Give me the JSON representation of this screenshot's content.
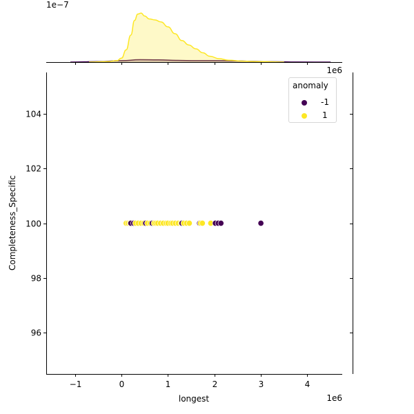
{
  "chart_data": {
    "type": "scatter",
    "subtype": "jointplot",
    "title": "",
    "xlabel": "longest",
    "ylabel": "Completeness_Specific",
    "x_scale_label": "1e6",
    "x_ticks": [
      -1,
      0,
      1,
      2,
      3,
      4
    ],
    "x_tick_labels": [
      "−1",
      "0",
      "1",
      "2",
      "3",
      "4"
    ],
    "xlim": [
      -1.62,
      4.75
    ],
    "y_ticks": [
      96,
      98,
      100,
      102,
      104
    ],
    "y_tick_labels": [
      "96",
      "98",
      "100",
      "102",
      "104"
    ],
    "ylim": [
      94.5,
      105.5
    ],
    "grid": false,
    "legend": {
      "title": "anomaly",
      "position": "upper right",
      "entries": [
        {
          "label": "-1",
          "color": "#440154"
        },
        {
          "label": "1",
          "color": "#fde725"
        }
      ]
    },
    "series": [
      {
        "name": "1",
        "color": "#fde725",
        "x_1e6": [
          0.1,
          0.14,
          0.18,
          0.3,
          0.36,
          0.42,
          0.48,
          0.56,
          0.62,
          0.66,
          0.7,
          0.74,
          0.78,
          0.84,
          0.9,
          0.96,
          1.0,
          1.06,
          1.1,
          1.16,
          1.22,
          1.28,
          1.34,
          1.4,
          1.46,
          1.7,
          1.74,
          1.92
        ],
        "y": 100
      },
      {
        "name": "-1",
        "color": "#440154",
        "x_1e6": [
          0.2,
          0.26,
          0.52,
          0.66,
          1.3,
          1.68,
          2.02,
          2.08,
          2.14,
          3.0
        ],
        "y": 100
      }
    ],
    "marginal_top": {
      "type": "kde",
      "scale_label": "1e−7",
      "curves": [
        {
          "name": "1",
          "color": "#fde725",
          "points_1e6": [
            [
              -0.7,
              0.0
            ],
            [
              -0.3,
              0.01
            ],
            [
              -0.1,
              0.03
            ],
            [
              0.0,
              0.08
            ],
            [
              0.1,
              0.25
            ],
            [
              0.2,
              0.55
            ],
            [
              0.28,
              0.85
            ],
            [
              0.35,
              0.98
            ],
            [
              0.42,
              1.0
            ],
            [
              0.5,
              0.94
            ],
            [
              0.6,
              0.88
            ],
            [
              0.72,
              0.86
            ],
            [
              0.85,
              0.82
            ],
            [
              1.0,
              0.72
            ],
            [
              1.15,
              0.58
            ],
            [
              1.3,
              0.44
            ],
            [
              1.45,
              0.35
            ],
            [
              1.6,
              0.27
            ],
            [
              1.75,
              0.19
            ],
            [
              1.9,
              0.12
            ],
            [
              2.1,
              0.07
            ],
            [
              2.3,
              0.04
            ],
            [
              2.6,
              0.02
            ],
            [
              3.0,
              0.01
            ],
            [
              3.5,
              0.0
            ]
          ]
        },
        {
          "name": "-1",
          "color": "#440154",
          "points_1e6": [
            [
              -1.1,
              0.0
            ],
            [
              -0.5,
              0.01
            ],
            [
              0.0,
              0.03
            ],
            [
              0.4,
              0.05
            ],
            [
              0.8,
              0.045
            ],
            [
              1.2,
              0.035
            ],
            [
              1.6,
              0.03
            ],
            [
              2.0,
              0.03
            ],
            [
              2.4,
              0.025
            ],
            [
              2.8,
              0.015
            ],
            [
              3.2,
              0.008
            ],
            [
              3.8,
              0.002
            ],
            [
              4.5,
              0.0
            ]
          ]
        }
      ]
    },
    "marginal_right": {
      "type": "kde",
      "note": "empty (constant y value)"
    }
  }
}
